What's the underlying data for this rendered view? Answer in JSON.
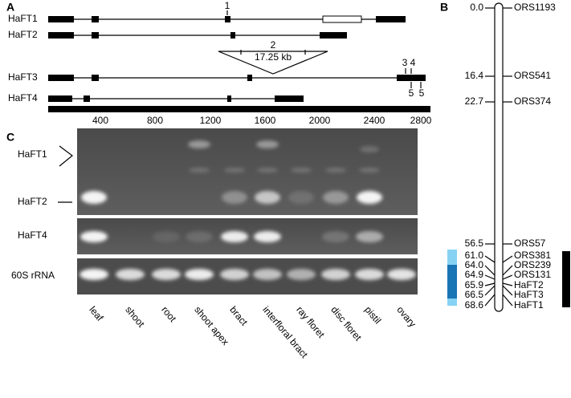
{
  "panel_labels": [
    "A",
    "B",
    "C"
  ],
  "panel_a": {
    "genes": [
      "HaFT1",
      "HaFT2",
      "HaFT3",
      "HaFT4"
    ],
    "site_labels": [
      "1",
      "2",
      "3",
      "4",
      "5",
      "5"
    ],
    "insert_size": "17.25 kb",
    "scale_labels": [
      400,
      800,
      1200,
      1600,
      2000,
      2400,
      2800
    ]
  },
  "panel_b": {
    "loci": [
      {
        "position": "0.0",
        "marker": "ORS1193"
      },
      {
        "position": "16.4",
        "marker": "ORS541"
      },
      {
        "position": "22.7",
        "marker": "ORS374"
      },
      {
        "position": "56.5",
        "marker": "ORS57"
      },
      {
        "position": "61.0",
        "marker": "ORS381"
      },
      {
        "position": "64.0",
        "marker": "ORS239"
      },
      {
        "position": "64.9",
        "marker": "ORS131"
      },
      {
        "position": "65.9",
        "marker": "HaFT2"
      },
      {
        "position": "66.5",
        "marker": "HaFT3"
      },
      {
        "position": "68.6",
        "marker": "HaFT1"
      }
    ]
  },
  "panel_c": {
    "row_labels": [
      "HaFT1",
      "HaFT2",
      "HaFT4",
      "60S rRNA"
    ],
    "lanes": [
      "leaf",
      "shoot",
      "root",
      "shoot apex",
      "bract",
      "interfloral bract",
      "ray floret",
      "disc floret",
      "pistil",
      "ovary"
    ]
  }
}
